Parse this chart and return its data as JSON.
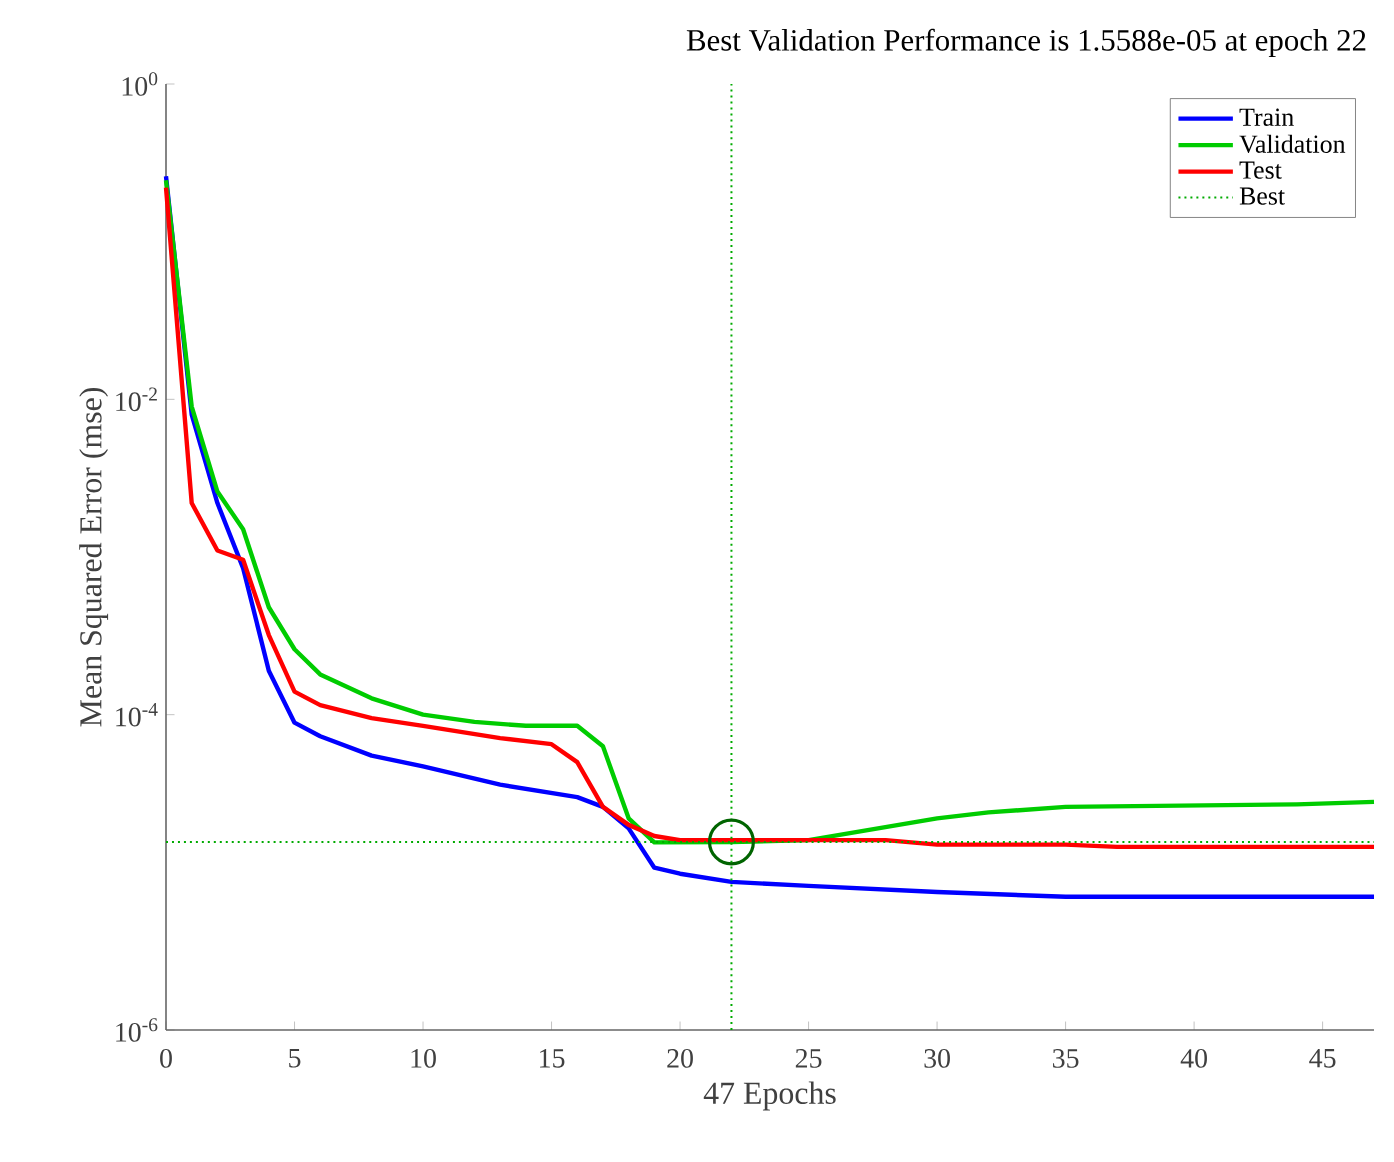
{
  "chart_data": {
    "type": "line",
    "title": "Best Validation Performance is 1.5588e-05 at epoch 22",
    "xlabel": "47 Epochs",
    "ylabel": "Mean Squared Error  (mse)",
    "series": [
      {
        "name": "Train",
        "color": "#0000ff",
        "x": [
          0,
          1,
          2,
          3,
          4,
          5,
          6,
          8,
          10,
          13,
          16,
          17,
          18,
          19,
          20,
          22,
          25,
          30,
          35,
          47
        ],
        "values": [
          0.26,
          0.008,
          0.0022,
          0.00085,
          0.00019,
          8.9e-05,
          7.3e-05,
          5.5e-05,
          4.7e-05,
          3.6e-05,
          3e-05,
          2.6e-05,
          1.9e-05,
          1.07e-05,
          9.8e-06,
          8.7e-06,
          8.2e-06,
          7.5e-06,
          7e-06,
          7e-06
        ]
      },
      {
        "name": "Validation",
        "color": "#00cc00",
        "x": [
          0,
          1,
          2,
          3,
          4,
          5,
          6,
          8,
          10,
          12,
          14,
          16,
          17,
          18,
          19,
          22,
          25,
          30,
          32,
          35,
          44,
          47
        ],
        "values": [
          0.245,
          0.009,
          0.0026,
          0.0015,
          0.00048,
          0.00026,
          0.00018,
          0.000127,
          0.0001,
          9e-05,
          8.5e-05,
          8.5e-05,
          6.3e-05,
          2.2e-05,
          1.55e-05,
          1.5588e-05,
          1.6e-05,
          2.2e-05,
          2.4e-05,
          2.6e-05,
          2.7e-05,
          2.8e-05
        ]
      },
      {
        "name": "Test",
        "color": "#ff0000",
        "x": [
          0,
          1,
          2,
          3,
          4,
          5,
          6,
          8,
          10,
          13,
          15,
          16,
          17,
          18,
          19,
          20,
          28,
          30,
          35,
          37,
          47
        ],
        "values": [
          0.22,
          0.0022,
          0.0011,
          0.00096,
          0.00032,
          0.00014,
          0.000115,
          9.5e-05,
          8.5e-05,
          7.1e-05,
          6.5e-05,
          5e-05,
          2.6e-05,
          2e-05,
          1.7e-05,
          1.6e-05,
          1.6e-05,
          1.5e-05,
          1.5e-05,
          1.45e-05,
          1.45e-05
        ]
      },
      {
        "type": "scatter",
        "color": "#006400",
        "marker": "circle",
        "x": [
          22
        ],
        "values": [
          1.5588e-05
        ]
      }
    ],
    "xlim": [
      0,
      47
    ],
    "ylim": [
      1e-06,
      1
    ],
    "log": "y",
    "xticks": [
      0,
      5,
      10,
      15,
      20,
      25,
      30,
      35,
      40,
      45
    ],
    "yticks": [
      {
        "value": 1e-06,
        "label": "10$^{-6}$"
      },
      {
        "value": 0.0001,
        "label": "10$^{-4}$"
      },
      {
        "value": 0.01,
        "label": "10$^{-2}$"
      },
      {
        "value": 1,
        "label": "10$^{0}$"
      }
    ],
    "ref_lines": [
      {
        "axis": "x",
        "value": 22,
        "color": "#00aa00",
        "line_style": "dotted"
      },
      {
        "axis": "y",
        "value": 1.5588e-05,
        "label": "Best",
        "color": "#00aa00",
        "line_style": "dotted"
      }
    ],
    "legend": "top right",
    "grid": false
  }
}
